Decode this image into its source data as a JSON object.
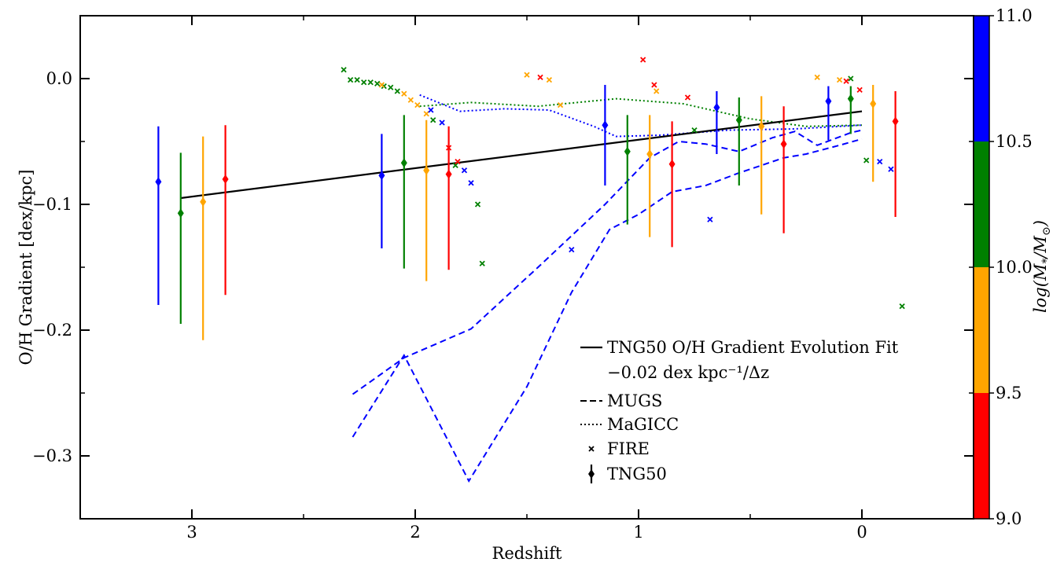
{
  "chart_data": {
    "type": "scatter",
    "xlabel": "Redshift",
    "ylabel": "O/H Gradient [dex/kpc]",
    "xlim": [
      3.5,
      -0.5
    ],
    "ylim": [
      -0.35,
      0.05
    ],
    "x_inverted": true,
    "xticks": [
      3,
      2,
      1,
      0
    ],
    "xtick_labels": [
      "3",
      "2",
      "1",
      "0"
    ],
    "yticks": [
      0.0,
      -0.1,
      -0.2,
      -0.3
    ],
    "ytick_labels": [
      "0.0",
      "−0.1",
      "−0.2",
      "−0.3"
    ],
    "grid": false,
    "legend_position": "bottom-center",
    "colorbar": {
      "label": "log(M*/M⊙)",
      "ticks": [
        9.0,
        9.5,
        10.0,
        10.5,
        11.0
      ],
      "tick_labels": [
        "9.0",
        "9.5",
        "10.0",
        "10.5",
        "11.0"
      ],
      "bins": [
        {
          "from": 9.0,
          "to": 9.5,
          "color": "#ff0000"
        },
        {
          "from": 9.5,
          "to": 10.0,
          "color": "#ffa500"
        },
        {
          "from": 10.0,
          "to": 10.5,
          "color": "#008000"
        },
        {
          "from": 10.5,
          "to": 11.0,
          "color": "#0000ff"
        }
      ]
    },
    "legend": [
      {
        "style": "solid",
        "label": "TNG50 O/H Gradient Evolution Fit",
        "label2": "−0.02 dex kpc⁻¹/Δz"
      },
      {
        "style": "dashed",
        "label": "MUGS"
      },
      {
        "style": "dotted",
        "label": "MaGICC"
      },
      {
        "style": "cross",
        "label": "FIRE"
      },
      {
        "style": "errorbar",
        "label": "TNG50"
      }
    ],
    "fit_line": {
      "x": [
        3.05,
        0.0
      ],
      "y": [
        -0.095,
        -0.026
      ],
      "color": "#000000"
    },
    "tng50": [
      {
        "x": 3.15,
        "y": -0.082,
        "err": [
          0.044,
          0.098
        ],
        "color": "#0000ff"
      },
      {
        "x": 3.05,
        "y": -0.107,
        "err": [
          0.048,
          0.088
        ],
        "color": "#008000"
      },
      {
        "x": 2.95,
        "y": -0.098,
        "err": [
          0.052,
          0.11
        ],
        "color": "#ffa500"
      },
      {
        "x": 2.85,
        "y": -0.08,
        "err": [
          0.043,
          0.092
        ],
        "color": "#ff0000"
      },
      {
        "x": 2.15,
        "y": -0.077,
        "err": [
          0.033,
          0.058
        ],
        "color": "#0000ff"
      },
      {
        "x": 2.05,
        "y": -0.067,
        "err": [
          0.038,
          0.084
        ],
        "color": "#008000"
      },
      {
        "x": 1.95,
        "y": -0.073,
        "err": [
          0.04,
          0.088
        ],
        "color": "#ffa500"
      },
      {
        "x": 1.85,
        "y": -0.076,
        "err": [
          0.038,
          0.076
        ],
        "color": "#ff0000"
      },
      {
        "x": 1.15,
        "y": -0.037,
        "err": [
          0.032,
          0.048
        ],
        "color": "#0000ff"
      },
      {
        "x": 1.05,
        "y": -0.058,
        "err": [
          0.029,
          0.058
        ],
        "color": "#008000"
      },
      {
        "x": 0.95,
        "y": -0.06,
        "err": [
          0.031,
          0.066
        ],
        "color": "#ffa500"
      },
      {
        "x": 0.85,
        "y": -0.068,
        "err": [
          0.034,
          0.066
        ],
        "color": "#ff0000"
      },
      {
        "x": 0.65,
        "y": -0.023,
        "err": [
          0.013,
          0.037
        ],
        "color": "#0000ff"
      },
      {
        "x": 0.55,
        "y": -0.033,
        "err": [
          0.018,
          0.052
        ],
        "color": "#008000"
      },
      {
        "x": 0.45,
        "y": -0.038,
        "err": [
          0.024,
          0.07
        ],
        "color": "#ffa500"
      },
      {
        "x": 0.35,
        "y": -0.052,
        "err": [
          0.03,
          0.071
        ],
        "color": "#ff0000"
      },
      {
        "x": 0.15,
        "y": -0.018,
        "err": [
          0.012,
          0.031
        ],
        "color": "#0000ff"
      },
      {
        "x": 0.05,
        "y": -0.016,
        "err": [
          0.01,
          0.028
        ],
        "color": "#008000"
      },
      {
        "x": -0.05,
        "y": -0.02,
        "err": [
          0.015,
          0.062
        ],
        "color": "#ffa500"
      },
      {
        "x": -0.15,
        "y": -0.034,
        "err": [
          0.024,
          0.076
        ],
        "color": "#ff0000"
      }
    ],
    "fire": [
      {
        "color": "#008000",
        "points": [
          [
            2.32,
            0.007
          ],
          [
            2.29,
            -0.001
          ],
          [
            2.26,
            -0.001
          ],
          [
            2.23,
            -0.003
          ],
          [
            2.2,
            -0.003
          ],
          [
            2.17,
            -0.004
          ],
          [
            2.14,
            -0.006
          ],
          [
            2.11,
            -0.007
          ],
          [
            2.08,
            -0.01
          ],
          [
            1.92,
            -0.033
          ],
          [
            1.82,
            -0.069
          ],
          [
            1.72,
            -0.1
          ],
          [
            1.7,
            -0.147
          ],
          [
            0.75,
            -0.041
          ],
          [
            0.05,
            0.0
          ],
          [
            -0.02,
            -0.065
          ],
          [
            -0.18,
            -0.181
          ]
        ]
      },
      {
        "color": "#ffa500",
        "points": [
          [
            2.15,
            -0.005
          ],
          [
            2.05,
            -0.012
          ],
          [
            2.02,
            -0.017
          ],
          [
            1.99,
            -0.021
          ],
          [
            1.95,
            -0.028
          ],
          [
            1.5,
            0.003
          ],
          [
            1.4,
            -0.001
          ],
          [
            1.35,
            -0.021
          ],
          [
            0.92,
            -0.01
          ],
          [
            0.2,
            0.001
          ],
          [
            0.1,
            -0.001
          ]
        ]
      },
      {
        "color": "#ff0000",
        "points": [
          [
            1.85,
            -0.055
          ],
          [
            1.81,
            -0.066
          ],
          [
            1.44,
            0.001
          ],
          [
            0.98,
            0.015
          ],
          [
            0.93,
            -0.005
          ],
          [
            0.78,
            -0.015
          ],
          [
            0.07,
            -0.002
          ],
          [
            0.01,
            -0.009
          ]
        ]
      },
      {
        "color": "#0000ff",
        "points": [
          [
            1.93,
            -0.025
          ],
          [
            1.88,
            -0.035
          ],
          [
            1.78,
            -0.073
          ],
          [
            1.75,
            -0.083
          ],
          [
            1.3,
            -0.136
          ],
          [
            0.68,
            -0.112
          ],
          [
            -0.08,
            -0.066
          ],
          [
            -0.13,
            -0.072
          ]
        ]
      }
    ],
    "mugs": [
      {
        "color": "#0000ff",
        "points": [
          [
            2.28,
            -0.251
          ],
          [
            2.05,
            -0.222
          ],
          [
            1.75,
            -0.199
          ],
          [
            1.45,
            -0.15
          ],
          [
            1.15,
            -0.1
          ],
          [
            0.95,
            -0.063
          ],
          [
            0.82,
            -0.05
          ],
          [
            0.7,
            -0.052
          ],
          [
            0.55,
            -0.058
          ],
          [
            0.4,
            -0.047
          ],
          [
            0.3,
            -0.042
          ],
          [
            0.2,
            -0.053
          ],
          [
            0.05,
            -0.043
          ],
          [
            0.0,
            -0.041
          ]
        ]
      },
      {
        "color": "#0000ff",
        "points": [
          [
            2.28,
            -0.285
          ],
          [
            2.05,
            -0.22
          ],
          [
            1.76,
            -0.32
          ],
          [
            1.5,
            -0.245
          ],
          [
            1.3,
            -0.17
          ],
          [
            1.13,
            -0.12
          ],
          [
            1.0,
            -0.108
          ],
          [
            0.85,
            -0.09
          ],
          [
            0.7,
            -0.085
          ],
          [
            0.55,
            -0.075
          ],
          [
            0.35,
            -0.063
          ],
          [
            0.25,
            -0.06
          ],
          [
            0.1,
            -0.053
          ],
          [
            0.0,
            -0.048
          ]
        ]
      }
    ],
    "magicc": [
      {
        "color": "#008000",
        "points": [
          [
            1.98,
            -0.022
          ],
          [
            1.75,
            -0.019
          ],
          [
            1.45,
            -0.022
          ],
          [
            1.1,
            -0.016
          ],
          [
            0.8,
            -0.02
          ],
          [
            0.5,
            -0.032
          ],
          [
            0.25,
            -0.038
          ],
          [
            0.0,
            -0.037
          ]
        ]
      },
      {
        "color": "#0000ff",
        "points": [
          [
            1.98,
            -0.013
          ],
          [
            1.8,
            -0.026
          ],
          [
            1.6,
            -0.024
          ],
          [
            1.4,
            -0.025
          ],
          [
            1.2,
            -0.038
          ],
          [
            1.1,
            -0.046
          ],
          [
            0.9,
            -0.045
          ],
          [
            0.6,
            -0.041
          ],
          [
            0.3,
            -0.04
          ],
          [
            0.0,
            -0.037
          ]
        ]
      }
    ]
  }
}
